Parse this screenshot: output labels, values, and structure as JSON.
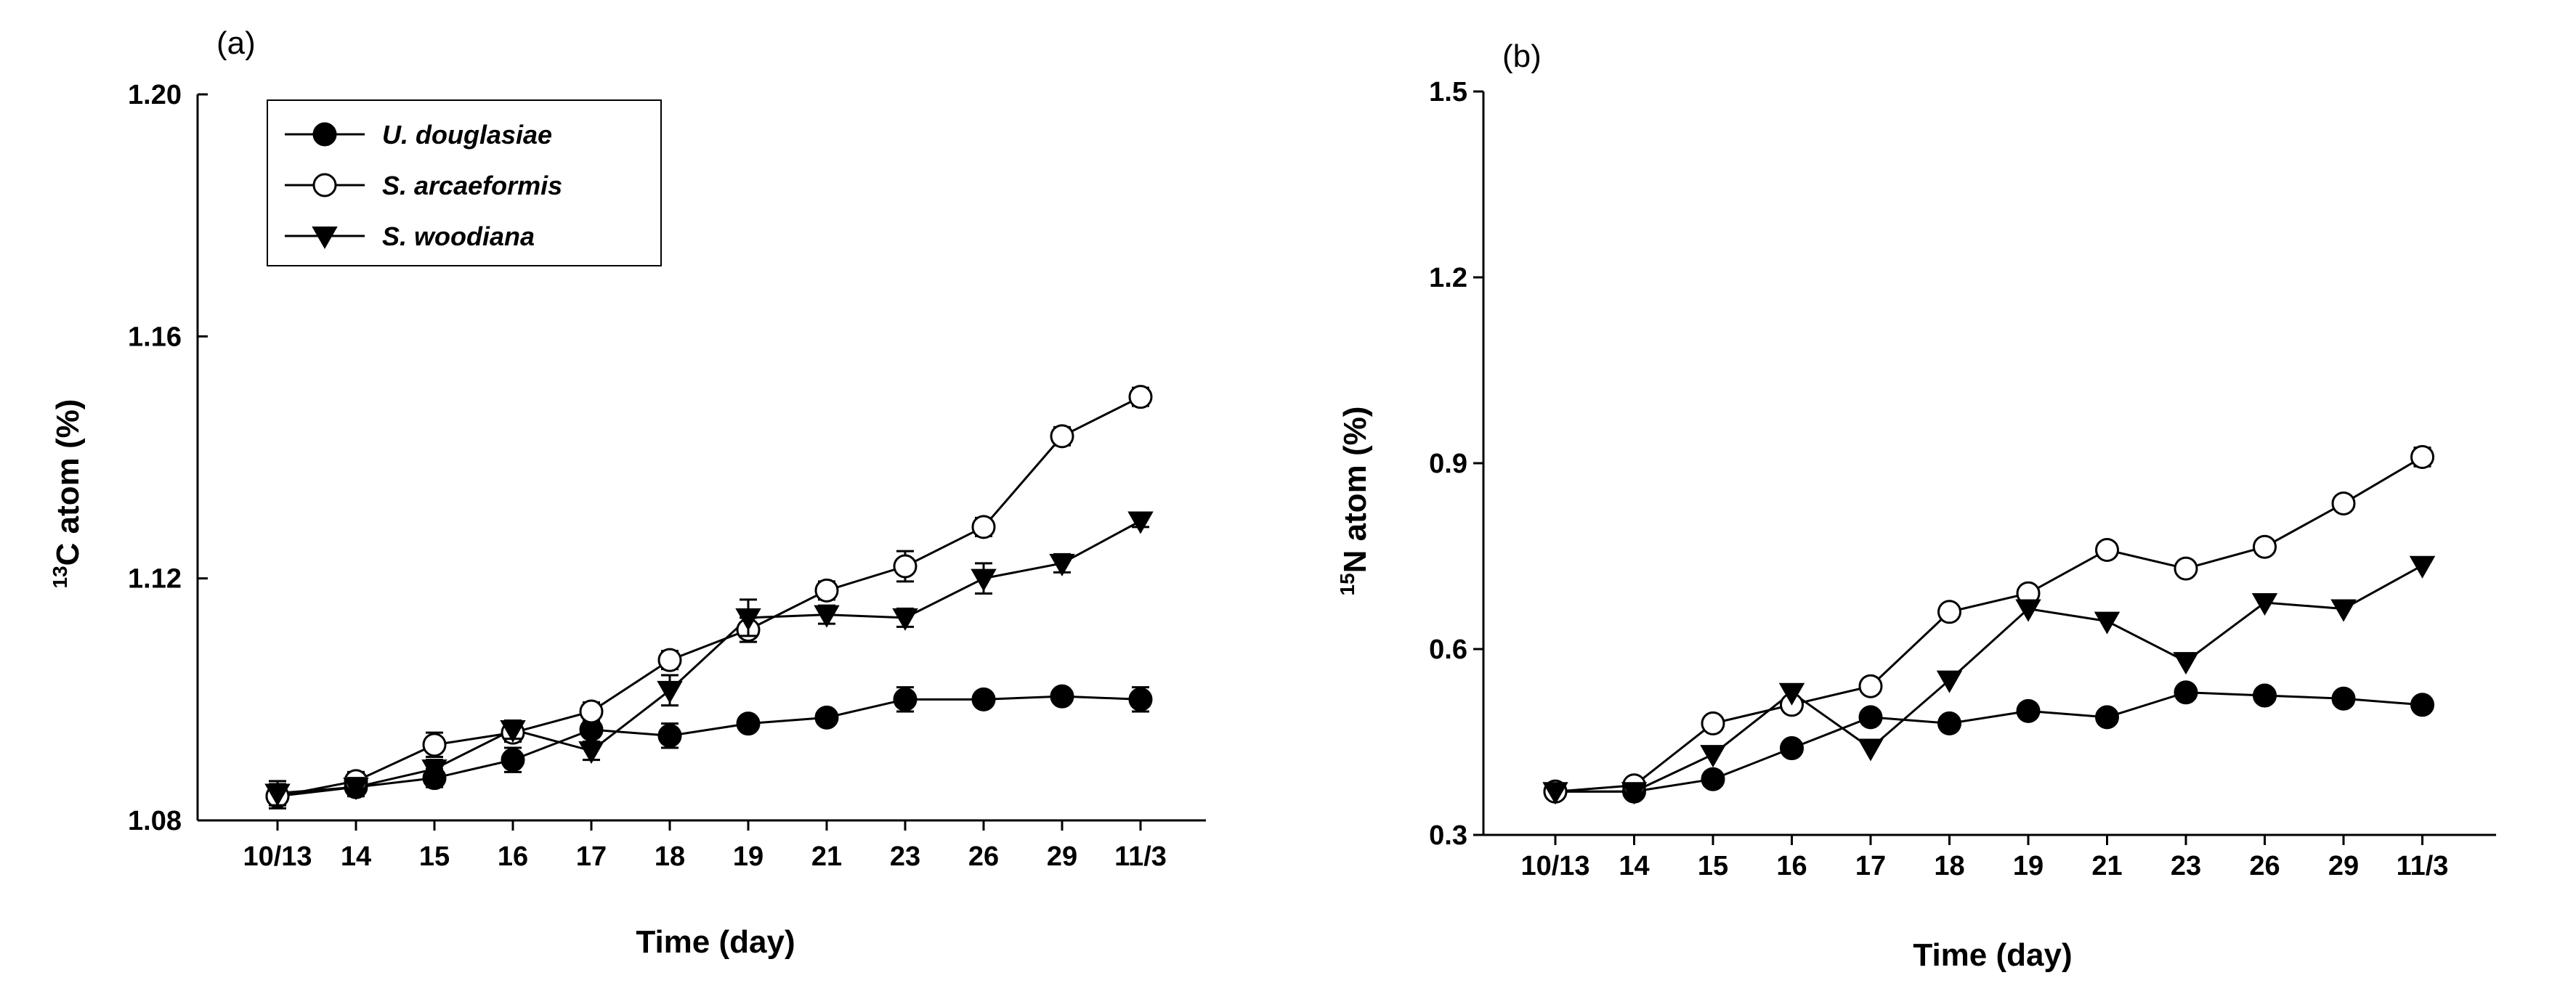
{
  "chart_data": [
    {
      "panel_label": "(a)",
      "type": "line",
      "categories": [
        "10/13",
        "14",
        "15",
        "16",
        "17",
        "18",
        "19",
        "21",
        "23",
        "26",
        "29",
        "11/3"
      ],
      "xlabel": "Time (day)",
      "ylabel": {
        "superscript": "13",
        "text": "C atom (%)"
      },
      "ylim": [
        1.08,
        1.2
      ],
      "yticks": [
        "1.08",
        "1.12",
        "1.16",
        "1.20"
      ],
      "legend_position": "top-left",
      "series": [
        {
          "name": "U. douglasiae",
          "marker": "filled-circle",
          "values": [
            1.084,
            1.0855,
            1.087,
            1.09,
            1.095,
            1.094,
            1.096,
            1.097,
            1.1,
            1.1,
            1.1005,
            1.1
          ],
          "errors": [
            0.002,
            0.0015,
            0.0015,
            0.002,
            0.002,
            0.002,
            0.001,
            0.001,
            0.002,
            0.001,
            0.001,
            0.002
          ]
        },
        {
          "name": "S. arcaeformis",
          "marker": "open-circle",
          "values": [
            1.084,
            1.0865,
            1.0925,
            1.0945,
            1.098,
            1.1065,
            1.1115,
            1.118,
            1.122,
            1.1285,
            1.1435,
            1.15
          ],
          "errors": [
            0.0015,
            0.0015,
            0.002,
            0.0015,
            0.0015,
            0.0015,
            0.002,
            0.0015,
            0.0025,
            0.0015,
            0.0015,
            0.0015
          ]
        },
        {
          "name": "S. woodiana",
          "marker": "filled-triangle-down",
          "values": [
            1.0845,
            1.0855,
            1.0885,
            1.095,
            1.0915,
            1.1015,
            1.1135,
            1.114,
            1.1135,
            1.12,
            1.1225,
            1.1295
          ],
          "errors": [
            0.002,
            0.0015,
            0.0015,
            0.0015,
            0.0015,
            0.0025,
            0.003,
            0.0015,
            0.0015,
            0.0025,
            0.0015,
            0.001
          ]
        }
      ]
    },
    {
      "panel_label": "(b)",
      "type": "line",
      "categories": [
        "10/13",
        "14",
        "15",
        "16",
        "17",
        "18",
        "19",
        "21",
        "23",
        "26",
        "29",
        "11/3"
      ],
      "xlabel": "Time (day)",
      "ylabel": {
        "superscript": "15",
        "text": "N atom (%)"
      },
      "ylim": [
        0.3,
        1.5
      ],
      "yticks": [
        "0.3",
        "0.6",
        "0.9",
        "1.2",
        "1.5"
      ],
      "series": [
        {
          "name": "U. douglasiae",
          "marker": "filled-circle",
          "values": [
            0.37,
            0.37,
            0.39,
            0.44,
            0.49,
            0.48,
            0.5,
            0.49,
            0.53,
            0.525,
            0.52,
            0.51
          ]
        },
        {
          "name": "S. arcaeformis",
          "marker": "open-circle",
          "values": [
            0.37,
            0.38,
            0.48,
            0.51,
            0.54,
            0.66,
            0.69,
            0.76,
            0.73,
            0.765,
            0.835,
            0.91
          ],
          "errors": [
            0,
            0,
            0,
            0,
            0,
            0,
            0,
            0,
            0,
            0,
            0,
            0.015
          ]
        },
        {
          "name": "S. woodiana",
          "marker": "filled-triangle-down",
          "values": [
            0.37,
            0.37,
            0.43,
            0.53,
            0.44,
            0.55,
            0.665,
            0.645,
            0.58,
            0.675,
            0.665,
            0.735
          ]
        }
      ]
    }
  ]
}
